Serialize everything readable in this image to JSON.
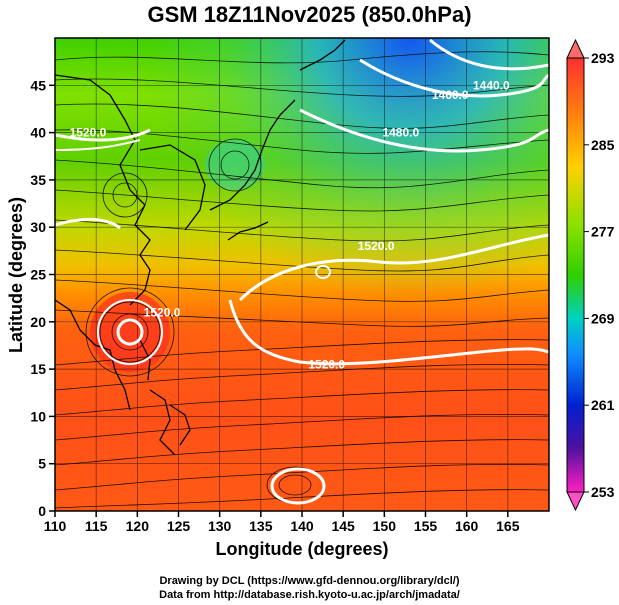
{
  "title": "GSM 18Z11Nov2025 (850.0hPa)",
  "x_axis": {
    "label": "Longitude (degrees)",
    "min": 110,
    "max": 170,
    "ticks": [
      "110",
      "115",
      "120",
      "125",
      "130",
      "135",
      "140",
      "145",
      "150",
      "155",
      "160",
      "165"
    ]
  },
  "y_axis": {
    "label": "Latitude (degrees)",
    "min": 0,
    "max": 50,
    "ticks": [
      "0",
      "5",
      "10",
      "15",
      "20",
      "25",
      "30",
      "35",
      "40",
      "45"
    ]
  },
  "colorbar": {
    "min": 253,
    "max": 293,
    "labels": [
      "293",
      "285",
      "277",
      "269",
      "261",
      "253"
    ],
    "colors": [
      "#ff3030",
      "#ff7a10",
      "#ffd000",
      "#30d000",
      "#00d0c0",
      "#1090ff",
      "#0020d0",
      "#5010a0",
      "#ff20c0"
    ]
  },
  "contours": {
    "color": "#ffffff",
    "labels": [
      {
        "text": "1520.0",
        "lon": 143,
        "lat": 15.5
      },
      {
        "text": "1520.0",
        "lon": 123,
        "lat": 21
      },
      {
        "text": "1520.0",
        "lon": 149,
        "lat": 28
      },
      {
        "text": "1520.0",
        "lon": 114,
        "lat": 40
      },
      {
        "text": "1480.0",
        "lon": 152,
        "lat": 40
      },
      {
        "text": "1460.0",
        "lon": 158,
        "lat": 44
      },
      {
        "text": "1440.0",
        "lon": 163,
        "lat": 45
      }
    ]
  },
  "credits": {
    "line1": "Drawing by DCL (https://www.gfd-dennou.org/library/dcl/)",
    "line2": "Data from http://database.rish.kyoto-u.ac.jp/arch/jmadata/"
  }
}
